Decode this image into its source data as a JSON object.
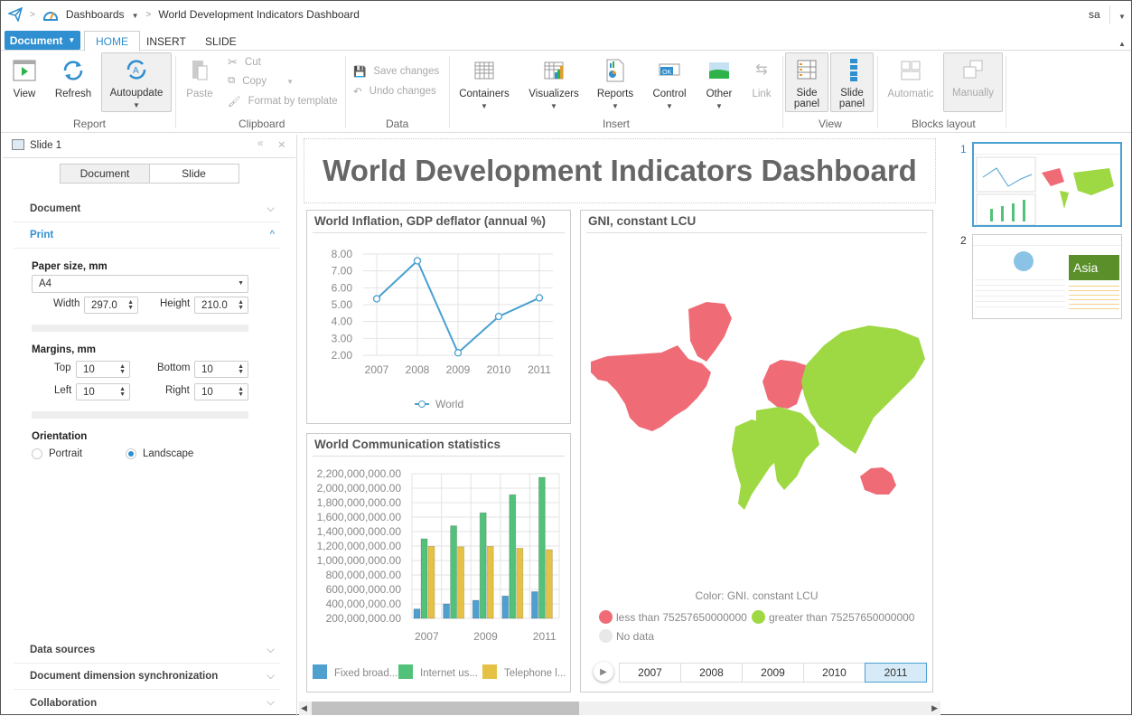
{
  "topbar": {
    "breadcrumb_root": "Dashboards",
    "breadcrumb_current": "World Development Indicators Dashboard",
    "user": "sa"
  },
  "tabs": {
    "document": "Document",
    "items": [
      "HOME",
      "INSERT",
      "SLIDE"
    ],
    "active": "HOME"
  },
  "ribbon": {
    "report": {
      "label": "Report",
      "view": "View",
      "refresh": "Refresh",
      "autoupdate": "Autoupdate"
    },
    "clipboard": {
      "label": "Clipboard",
      "paste": "Paste",
      "cut": "Cut",
      "copy": "Copy",
      "format": "Format by template"
    },
    "data": {
      "label": "Data",
      "save": "Save changes",
      "undo": "Undo changes"
    },
    "insert": {
      "label": "Insert",
      "containers": "Containers",
      "visualizers": "Visualizers",
      "reports": "Reports",
      "control": "Control",
      "other": "Other",
      "link": "Link"
    },
    "view": {
      "label": "View",
      "side1": "Side",
      "side2": "panel",
      "slide1": "Slide",
      "slide2": "panel"
    },
    "blocks": {
      "label": "Blocks layout",
      "automatic": "Automatic",
      "manually": "Manually"
    }
  },
  "left_panel": {
    "title": "Slide 1",
    "segments": [
      "Document",
      "Slide"
    ],
    "sections": {
      "document": "Document",
      "print": "Print",
      "data_sources": "Data sources",
      "sync": "Document dimension synchronization",
      "collab": "Collaboration"
    },
    "paper": {
      "label": "Paper size, mm",
      "value": "A4",
      "width_label": "Width",
      "width": "297.0",
      "height_label": "Height",
      "height": "210.0"
    },
    "margins": {
      "label": "Margins, mm",
      "top_label": "Top",
      "top": "10",
      "bottom_label": "Bottom",
      "bottom": "10",
      "left_label": "Left",
      "left": "10",
      "right_label": "Right",
      "right": "10"
    },
    "orientation": {
      "label": "Orientation",
      "portrait": "Portrait",
      "landscape": "Landscape",
      "selected": "Landscape"
    }
  },
  "dashboard": {
    "title": "World Development Indicators Dashboard"
  },
  "chart_data": [
    {
      "type": "line",
      "title": "World Inflation, GDP deflator (annual %)",
      "categories": [
        "2007",
        "2008",
        "2009",
        "2010",
        "2011"
      ],
      "series": [
        {
          "name": "World",
          "values": [
            5.35,
            7.6,
            2.15,
            4.3,
            5.4
          ],
          "color": "#4aa0d0"
        }
      ],
      "yticks": [
        "8.00",
        "7.00",
        "6.00",
        "5.00",
        "4.00",
        "3.00",
        "2.00"
      ],
      "ylim": [
        2,
        8
      ],
      "grid": true,
      "legend": "bottom"
    },
    {
      "type": "bar",
      "title": "World Communication statistics",
      "categories": [
        "2007",
        "2008",
        "2009",
        "2010",
        "2011"
      ],
      "xtick_labels": [
        "2007",
        "",
        "2009",
        "",
        "2011"
      ],
      "series": [
        {
          "name": "Fixed broad...",
          "values": [
            330000000,
            400000000,
            450000000,
            510000000,
            570000000
          ],
          "color": "#4f9fcf"
        },
        {
          "name": "Internet us...",
          "values": [
            1300000000,
            1480000000,
            1660000000,
            1910000000,
            2150000000
          ],
          "color": "#52c17a"
        },
        {
          "name": "Telephone l...",
          "values": [
            1195000000,
            1190000000,
            1195000000,
            1170000000,
            1150000000
          ],
          "color": "#e5c245"
        }
      ],
      "yticks": [
        "2,200,000,000.00",
        "2,000,000,000.00",
        "1,800,000,000.00",
        "1,600,000,000.00",
        "1,400,000,000.00",
        "1,200,000,000.00",
        "1,000,000,000.00",
        "800,000,000.00",
        "600,000,000.00",
        "400,000,000.00",
        "200,000,000.00"
      ],
      "ylim": [
        200000000,
        2200000000
      ],
      "grid": true,
      "legend": "bottom"
    }
  ],
  "map": {
    "title": "GNI, constant LCU",
    "legend_title": "Color: GNI. constant LCU",
    "less": "less than 75257650000000",
    "greater": "greater than 75257650000000",
    "nodata": "No data",
    "colors": {
      "less": "#ef6b76",
      "greater": "#9ed843",
      "nodata": "#e8e8e8"
    },
    "years": [
      "2007",
      "2008",
      "2009",
      "2010",
      "2011"
    ],
    "selected_year": "2011"
  },
  "slides": {
    "numbers": [
      "1",
      "2"
    ],
    "thumb2_label": "Asia"
  }
}
